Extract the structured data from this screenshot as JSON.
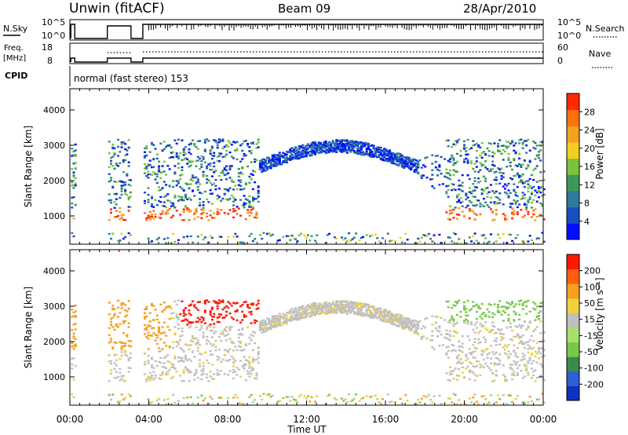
{
  "header": {
    "station": "Unwin (fitACF)",
    "beam": "Beam 09",
    "date": "28/Apr/2010"
  },
  "top_panels": {
    "nsky_label": "N.Sky",
    "nsky_ticks": [
      "10^5",
      "10^0"
    ],
    "nsearch_label": "N.Search",
    "nsearch_ticks": [
      "10^5",
      "10^0"
    ],
    "freq_label_1": "Freq.",
    "freq_label_2": "[MHz]",
    "freq_ticks": [
      "18",
      "8"
    ],
    "nave_label": "Nave",
    "nave_ticks": [
      "60",
      "0"
    ],
    "cpid_label": "CPID",
    "cpid_text": "normal (fast stereo) 153"
  },
  "chart_data": [
    {
      "type": "heatmap",
      "panel": "power",
      "ylabel": "Slant Range [km]",
      "xlabel": "",
      "yticks": [
        1000,
        2000,
        3000,
        4000
      ],
      "ylim": [
        200,
        4600
      ],
      "xlim": [
        0,
        24
      ],
      "colorbar": {
        "label": "Power [dB]",
        "ticks": [
          "4",
          "8",
          "12",
          "16",
          "20",
          "24",
          "28"
        ],
        "colors": [
          "#0010ff",
          "#1a4fc0",
          "#2f7a9a",
          "#3b9a5a",
          "#7cc23a",
          "#f0d020",
          "#f5a020",
          "#ff7010",
          "#ff2a00"
        ]
      }
    },
    {
      "type": "heatmap",
      "panel": "velocity",
      "ylabel": "Slant Range [km]",
      "xlabel": "Time UT",
      "xticks": [
        "00:00",
        "04:00",
        "08:00",
        "12:00",
        "16:00",
        "20:00",
        "00:00"
      ],
      "yticks": [
        1000,
        2000,
        3000,
        4000
      ],
      "ylim": [
        200,
        4600
      ],
      "xlim": [
        0,
        24
      ],
      "colorbar": {
        "label": "Velocity [m s⁻¹]",
        "ticks": [
          "200",
          "100",
          "50",
          "15",
          "-15",
          "-50",
          "-100",
          "-200"
        ],
        "colors": [
          "#1030c0",
          "#2f5fd0",
          "#3a8a50",
          "#7ac848",
          "#a8e070",
          "#c0c0c0",
          "#f0d040",
          "#f5a020",
          "#ff6010",
          "#ff1800"
        ]
      }
    }
  ]
}
